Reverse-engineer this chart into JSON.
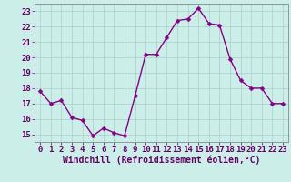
{
  "x": [
    0,
    1,
    2,
    3,
    4,
    5,
    6,
    7,
    8,
    9,
    10,
    11,
    12,
    13,
    14,
    15,
    16,
    17,
    18,
    19,
    20,
    21,
    22,
    23
  ],
  "y": [
    17.8,
    17.0,
    17.2,
    16.1,
    15.9,
    14.9,
    15.4,
    15.1,
    14.9,
    17.5,
    20.2,
    20.2,
    21.3,
    22.4,
    22.5,
    23.2,
    22.2,
    22.1,
    19.9,
    18.5,
    18.0,
    18.0,
    17.0,
    17.0
  ],
  "ylim": [
    14.5,
    23.5
  ],
  "yticks": [
    15,
    16,
    17,
    18,
    19,
    20,
    21,
    22,
    23
  ],
  "xlim": [
    -0.5,
    23.5
  ],
  "xticks": [
    0,
    1,
    2,
    3,
    4,
    5,
    6,
    7,
    8,
    9,
    10,
    11,
    12,
    13,
    14,
    15,
    16,
    17,
    18,
    19,
    20,
    21,
    22,
    23
  ],
  "line_color": "#880088",
  "marker_color": "#880088",
  "bg_color": "#cceee8",
  "grid_color": "#aacccc",
  "xlabel": "Windchill (Refroidissement éolien,°C)",
  "xlabel_fontsize": 7,
  "tick_fontsize": 6.5,
  "line_width": 1.0,
  "marker_size": 2.5
}
